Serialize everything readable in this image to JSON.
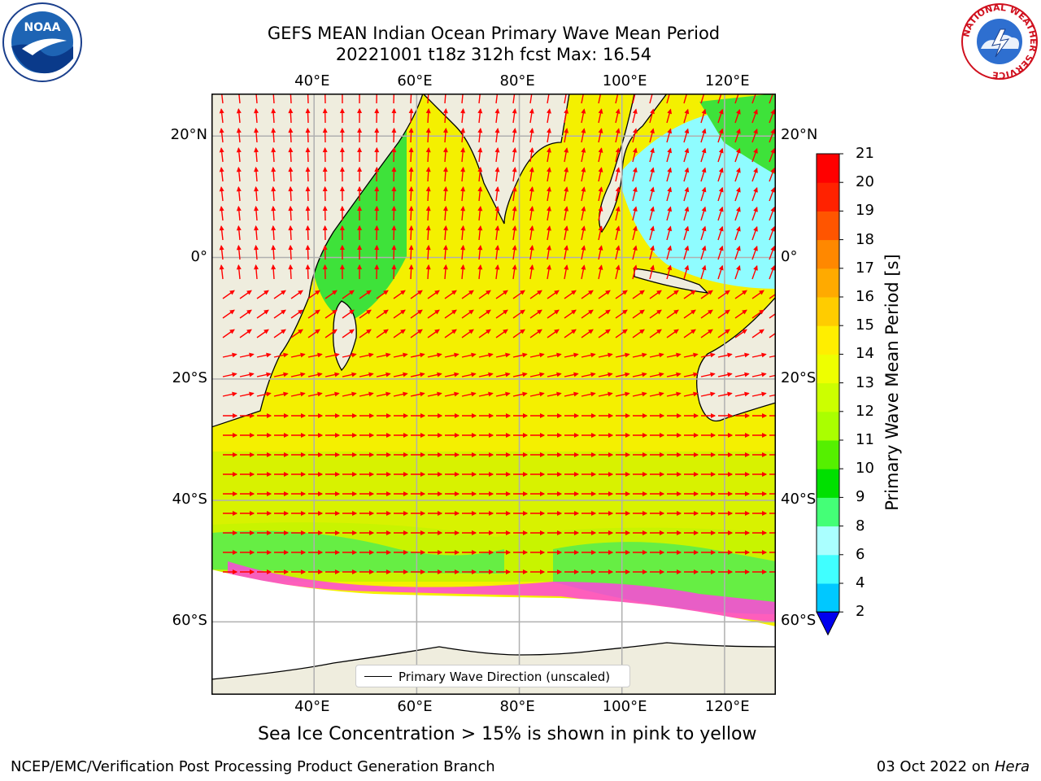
{
  "title": {
    "line1": "GEFS MEAN Indian Ocean Primary Wave Mean Period",
    "line2": "20221001 t18z 312h fcst   Max: 16.54"
  },
  "map": {
    "lon_ticks": [
      "40°E",
      "60°E",
      "80°E",
      "100°E",
      "120°E"
    ],
    "lat_ticks": [
      "20°N",
      "0°",
      "20°S",
      "40°S",
      "60°S"
    ],
    "lon_range": [
      20,
      130
    ],
    "lat_range": [
      -72,
      27
    ],
    "land_color": "#efedde",
    "arrow_color": "#ff0000",
    "gridlines": true
  },
  "legend": {
    "label": "Primary Wave Direction (unscaled)"
  },
  "colorbar": {
    "title": "Primary Wave Mean Period [s]",
    "labels": [
      "2",
      "4",
      "6",
      "8",
      "9",
      "10",
      "11",
      "12",
      "13",
      "14",
      "15",
      "16",
      "17",
      "18",
      "19",
      "20",
      "21"
    ],
    "colors": [
      "#0033ff",
      "#00c8ff",
      "#40ffff",
      "#aaffff",
      "#44ff77",
      "#00e000",
      "#55f000",
      "#aaff00",
      "#ccff00",
      "#eeff00",
      "#ffee00",
      "#ffcc00",
      "#ffaa00",
      "#ff8800",
      "#ff5500",
      "#ff2200",
      "#ff0000"
    ],
    "extend_color": "#0000ee"
  },
  "note": "Sea Ice Concentration > 15% is shown in pink to yellow",
  "footer": {
    "left": "NCEP/EMC/Verification Post Processing Product Generation Branch",
    "date": "03 Oct 2022 on ",
    "machine": "Hera"
  },
  "logos": {
    "noaa": "NOAA",
    "nws": "NATIONAL WEATHER SERVICE"
  }
}
